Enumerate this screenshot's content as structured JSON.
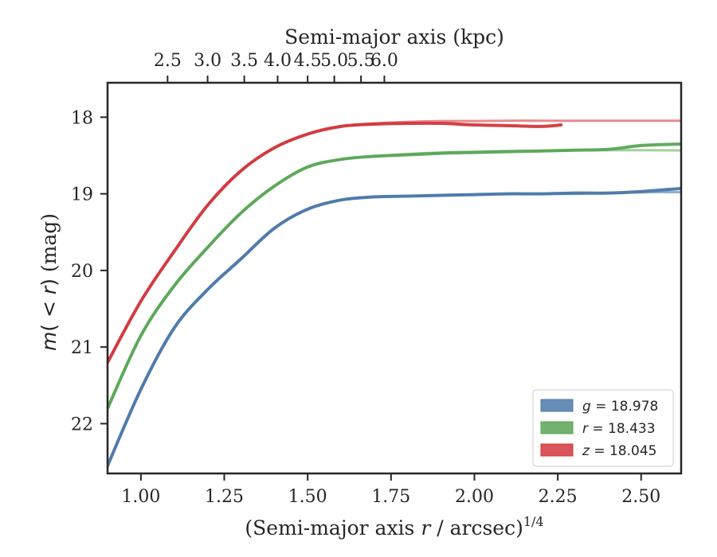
{
  "chart_data": {
    "type": "line",
    "xlabel": "(Semi-major axis r / arcsec)",
    "xlabel_italic_part": "r",
    "xlabel_superscript": "1/4",
    "ylabel": "m( < r) (mag)",
    "top_xlabel": "Semi-major axis (kpc)",
    "xlim": [
      0.9,
      2.62
    ],
    "ylim": [
      22.65,
      17.55
    ],
    "y_inverted": true,
    "x_ticks": [
      1.0,
      1.25,
      1.5,
      1.75,
      2.0,
      2.25,
      2.5
    ],
    "x_tick_labels": [
      "1.00",
      "1.25",
      "1.50",
      "1.75",
      "2.00",
      "2.25",
      "2.50"
    ],
    "y_ticks": [
      18,
      19,
      20,
      21,
      22
    ],
    "y_tick_labels": [
      "18",
      "19",
      "20",
      "21",
      "22"
    ],
    "top_ticks_kpc": [
      2.5,
      3.0,
      3.5,
      4.0,
      4.5,
      5.0,
      5.5,
      6.0
    ],
    "top_tick_labels": [
      "2.5",
      "3.0",
      "3.5",
      "4.0",
      "4.5",
      "5.0",
      "5.5",
      "6.0"
    ],
    "top_ticks_x_position": [
      1.08,
      1.2,
      1.31,
      1.41,
      1.5,
      1.58,
      1.66,
      1.73
    ],
    "grid": false,
    "legend_position": "bottom-right",
    "series": [
      {
        "name": "g = 18.978",
        "legend_var": "g",
        "legend_value": "= 18.978",
        "color": "#4c78a8",
        "model_color": "#8fb0d0",
        "x": [
          0.9,
          1.0,
          1.1,
          1.2,
          1.3,
          1.4,
          1.5,
          1.6,
          1.7,
          1.8,
          1.9,
          2.0,
          2.1,
          2.2,
          2.3,
          2.4,
          2.5,
          2.62
        ],
        "y": [
          22.55,
          21.55,
          20.75,
          20.25,
          19.85,
          19.45,
          19.2,
          19.08,
          19.04,
          19.03,
          19.02,
          19.01,
          19.0,
          19.0,
          18.99,
          18.99,
          18.97,
          18.93
        ],
        "model_y": [
          22.55,
          21.55,
          20.75,
          20.25,
          19.85,
          19.45,
          19.2,
          19.08,
          19.04,
          19.03,
          19.02,
          19.01,
          19.0,
          19.0,
          19.0,
          18.99,
          18.98,
          18.978
        ]
      },
      {
        "name": "r = 18.433",
        "legend_var": "r",
        "legend_value": "= 18.433",
        "color": "#5aa556",
        "model_color": "#a3d09f",
        "x": [
          0.9,
          1.0,
          1.1,
          1.2,
          1.3,
          1.4,
          1.5,
          1.6,
          1.7,
          1.8,
          1.9,
          2.0,
          2.1,
          2.2,
          2.3,
          2.4,
          2.5,
          2.62
        ],
        "y": [
          21.8,
          20.85,
          20.2,
          19.7,
          19.25,
          18.9,
          18.65,
          18.55,
          18.51,
          18.49,
          18.47,
          18.46,
          18.45,
          18.44,
          18.43,
          18.42,
          18.37,
          18.35
        ],
        "model_y": [
          21.8,
          20.85,
          20.2,
          19.7,
          19.25,
          18.9,
          18.65,
          18.55,
          18.51,
          18.48,
          18.46,
          18.45,
          18.44,
          18.44,
          18.43,
          18.43,
          18.43,
          18.433
        ]
      },
      {
        "name": "z = 18.045",
        "legend_var": "z",
        "legend_value": "= 18.045",
        "color": "#d1373c",
        "model_color": "#e88a8d",
        "x": [
          0.9,
          1.0,
          1.1,
          1.2,
          1.3,
          1.4,
          1.5,
          1.6,
          1.7,
          1.8,
          1.9,
          2.0,
          2.1,
          2.2,
          2.26
        ],
        "y": [
          21.2,
          20.4,
          19.75,
          19.15,
          18.7,
          18.4,
          18.22,
          18.12,
          18.09,
          18.08,
          18.08,
          18.1,
          18.11,
          18.12,
          18.1
        ],
        "model_x": [
          0.9,
          1.0,
          1.1,
          1.2,
          1.3,
          1.4,
          1.5,
          1.6,
          1.7,
          1.8,
          1.9,
          2.0,
          2.1,
          2.2,
          2.3,
          2.4,
          2.5,
          2.62
        ],
        "model_y": [
          21.2,
          20.4,
          19.75,
          19.15,
          18.7,
          18.4,
          18.22,
          18.12,
          18.08,
          18.06,
          18.05,
          18.05,
          18.045,
          18.045,
          18.045,
          18.045,
          18.045,
          18.045
        ]
      }
    ]
  }
}
